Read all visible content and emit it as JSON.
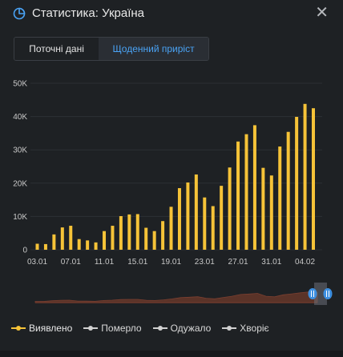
{
  "header": {
    "title": "Статистика: Україна",
    "icon": "pie-chart-icon",
    "close_icon": "close-icon"
  },
  "tabs": [
    {
      "label": "Поточні дані",
      "active": false
    },
    {
      "label": "Щоденний приріст",
      "active": true
    }
  ],
  "colors": {
    "accent": "#4aa3f5",
    "bar": "#f6c338",
    "grid": "#2c3035",
    "axis_text": "#c8c8c8",
    "navigator_fill": "#5a3328"
  },
  "chart_data": {
    "type": "bar",
    "title": "",
    "xlabel": "",
    "ylabel": "",
    "ylim": [
      0,
      50000
    ],
    "yticks": [
      "0",
      "10K",
      "20K",
      "30K",
      "40K",
      "50K"
    ],
    "categories": [
      "03.01",
      "04.01",
      "05.01",
      "06.01",
      "07.01",
      "08.01",
      "09.01",
      "10.01",
      "11.01",
      "12.01",
      "13.01",
      "14.01",
      "15.01",
      "16.01",
      "17.01",
      "18.01",
      "19.01",
      "20.01",
      "21.01",
      "22.01",
      "23.01",
      "24.01",
      "25.01",
      "26.01",
      "27.01",
      "28.01",
      "29.01",
      "30.01",
      "31.01",
      "01.02",
      "02.02",
      "03.02",
      "04.02",
      "05.02"
    ],
    "xtick_labels": [
      "03.01",
      "07.01",
      "11.01",
      "15.01",
      "19.01",
      "23.01",
      "27.01",
      "31.01",
      "04.02"
    ],
    "series": [
      {
        "name": "Виявлено",
        "values": [
          1800,
          1700,
          4600,
          6700,
          7200,
          3200,
          2800,
          2200,
          5600,
          7200,
          10100,
          10600,
          10700,
          6600,
          5600,
          8600,
          12900,
          18500,
          20200,
          22600,
          15700,
          13100,
          19200,
          24700,
          32500,
          34700,
          37400,
          24600,
          22300,
          31000,
          35400,
          39900,
          43800,
          42500
        ]
      }
    ],
    "legend": [
      {
        "label": "Виявлено",
        "active": true
      },
      {
        "label": "Померло",
        "active": false
      },
      {
        "label": "Одужало",
        "active": false
      },
      {
        "label": "Хворіє",
        "active": false
      }
    ],
    "legend_position": "bottom-left",
    "grid": true
  }
}
